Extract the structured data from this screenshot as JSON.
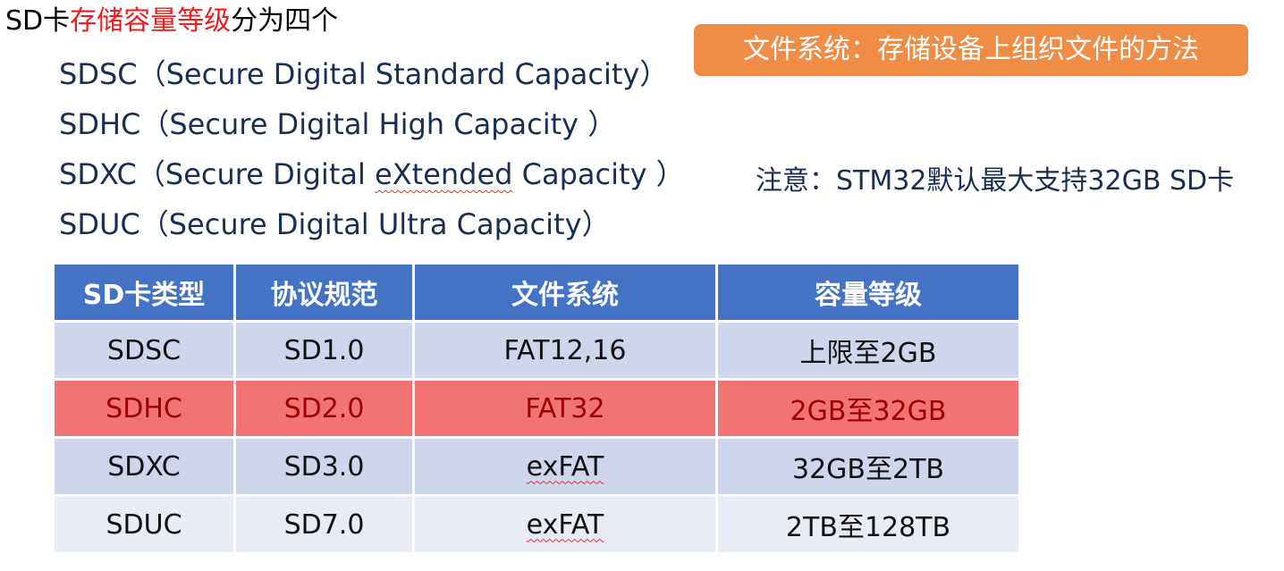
{
  "title": {
    "prefix": "SD卡",
    "highlight": "存储容量等级",
    "suffix": "分为四个"
  },
  "types": [
    {
      "name": "SDSC",
      "desc_before": "（Secure Digital Standard Capacity）",
      "desc_marked": "",
      "desc_after": ""
    },
    {
      "name": "SDHC",
      "desc_before": "（Secure Digital High Capacity ）",
      "desc_marked": "",
      "desc_after": ""
    },
    {
      "name": "SDXC",
      "desc_before": "（Secure Digital ",
      "desc_marked": "eXtended",
      "desc_after": " Capacity ）"
    },
    {
      "name": "SDUC",
      "desc_before": "（Secure Digital Ultra Capacity）",
      "desc_marked": "",
      "desc_after": ""
    }
  ],
  "fs_badge": "文件系统：存储设备上组织文件的方法",
  "note": "注意：STM32默认最大支持32GB SD卡",
  "colors": {
    "highlight_text": "#ee1c1c",
    "badge_bg": "#ef8c45",
    "table_header": "#4472c4",
    "row_highlight": "#f27373"
  },
  "table": {
    "headers": [
      "SD卡类型",
      "协议规范",
      "文件系统",
      "容量等级"
    ],
    "rows": [
      {
        "type": "SDSC",
        "protocol": "SD1.0",
        "fs": "FAT12,16",
        "capacity": "上限至2GB"
      },
      {
        "type": "SDHC",
        "protocol": "SD2.0",
        "fs": "FAT32",
        "capacity": "2GB至32GB"
      },
      {
        "type": "SDXC",
        "protocol": "SD3.0",
        "fs": "exFAT",
        "capacity": "32GB至2TB"
      },
      {
        "type": "SDUC",
        "protocol": "SD7.0",
        "fs": "exFAT",
        "capacity": "2TB至128TB"
      }
    ]
  }
}
